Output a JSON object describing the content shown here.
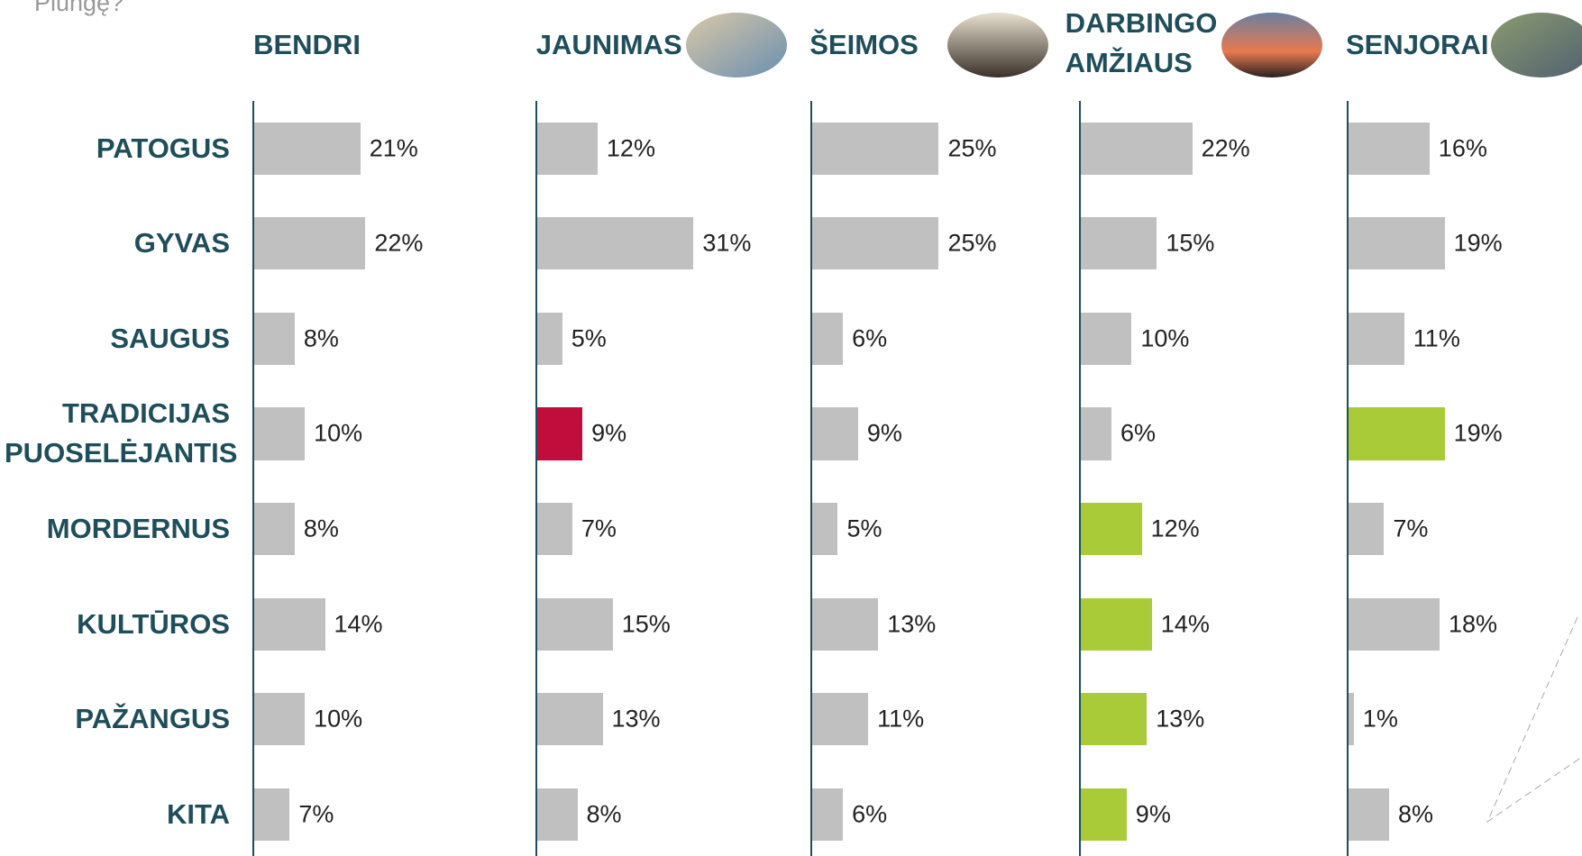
{
  "chart_data": {
    "type": "bar",
    "title": "Plungę?",
    "categories": [
      "PATOGUS",
      "GYVAS",
      "SAUGUS",
      "TRADICIJAS PUOSELĖJANTIS",
      "MORDERNUS",
      "KULTŪROS",
      "PAŽANGUS",
      "KITA"
    ],
    "xlim": [
      0,
      30
    ],
    "series": [
      {
        "name": "BENDRI",
        "values": [
          21,
          22,
          8,
          10,
          8,
          14,
          10,
          7
        ],
        "value_labels": [
          "21%",
          "22%",
          "8%",
          "10%",
          "8%",
          "14%",
          "10%",
          "7%"
        ],
        "colors": [
          "#c0c0c0",
          "#c0c0c0",
          "#c0c0c0",
          "#c0c0c0",
          "#c0c0c0",
          "#c0c0c0",
          "#c0c0c0",
          "#c0c0c0"
        ]
      },
      {
        "name": "JAUNIMAS",
        "values": [
          12,
          31,
          5,
          9,
          7,
          15,
          13,
          8
        ],
        "value_labels": [
          "12%",
          "31%",
          "5%",
          "9%",
          "7%",
          "15%",
          "13%",
          "8%"
        ],
        "colors": [
          "#c0c0c0",
          "#c0c0c0",
          "#c0c0c0",
          "#c00d3c",
          "#c0c0c0",
          "#c0c0c0",
          "#c0c0c0",
          "#c0c0c0"
        ]
      },
      {
        "name": "ŠEIMOS",
        "values": [
          25,
          25,
          6,
          9,
          5,
          13,
          11,
          6
        ],
        "value_labels": [
          "25%",
          "25%",
          "6%",
          "9%",
          "5%",
          "13%",
          "11%",
          "6%"
        ],
        "colors": [
          "#c0c0c0",
          "#c0c0c0",
          "#c0c0c0",
          "#c0c0c0",
          "#c0c0c0",
          "#c0c0c0",
          "#c0c0c0",
          "#c0c0c0"
        ]
      },
      {
        "name": "DARBINGO AMŽIAUS",
        "values": [
          22,
          15,
          10,
          6,
          12,
          14,
          13,
          9
        ],
        "value_labels": [
          "22%",
          "15%",
          "10%",
          "6%",
          "12%",
          "14%",
          "13%",
          "9%"
        ],
        "colors": [
          "#c0c0c0",
          "#c0c0c0",
          "#c0c0c0",
          "#c0c0c0",
          "#a9cb38",
          "#a9cb38",
          "#a9cb38",
          "#a9cb38"
        ]
      },
      {
        "name": "SENJORAI",
        "values": [
          16,
          19,
          11,
          19,
          7,
          18,
          1,
          8
        ],
        "value_labels": [
          "16%",
          "19%",
          "11%",
          "19%",
          "7%",
          "18%",
          "1%",
          "8%"
        ],
        "colors": [
          "#c0c0c0",
          "#c0c0c0",
          "#c0c0c0",
          "#a9cb38",
          "#c0c0c0",
          "#c0c0c0",
          "#c0c0c0",
          "#c0c0c0"
        ]
      }
    ]
  }
}
